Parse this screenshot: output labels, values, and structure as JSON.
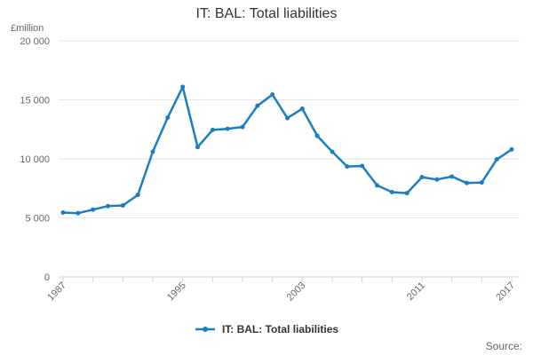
{
  "title": "IT: BAL: Total liabilities",
  "y_unit_label": "£million",
  "source_label": "Source:",
  "legend": {
    "label": "IT: BAL: Total liabilities"
  },
  "colors": {
    "line": "#1b7ec2",
    "grid": "#e6e6e6",
    "axis": "#ccd6eb",
    "tick_label": "#666666",
    "title_text": "#333333"
  },
  "chart_data": {
    "type": "line",
    "title": "IT: BAL: Total liabilities",
    "xlabel": "",
    "ylabel": "£million",
    "ylim": [
      0,
      20000
    ],
    "grid": "horizontal",
    "legend_position": "bottom",
    "x": [
      1987,
      1988,
      1989,
      1990,
      1991,
      1992,
      1993,
      1994,
      1995,
      1996,
      1997,
      1998,
      1999,
      2000,
      2001,
      2002,
      2003,
      2004,
      2005,
      2006,
      2007,
      2008,
      2009,
      2010,
      2011,
      2012,
      2013,
      2014,
      2015,
      2016,
      2017
    ],
    "series": [
      {
        "name": "IT: BAL: Total liabilities",
        "values": [
          5450,
          5400,
          5700,
          6000,
          6050,
          6950,
          10600,
          13500,
          16100,
          11000,
          12450,
          12550,
          12700,
          14500,
          15450,
          13450,
          14250,
          11950,
          10600,
          9350,
          9400,
          7750,
          7180,
          7100,
          8450,
          8250,
          8500,
          7950,
          8000,
          9950,
          10800
        ]
      }
    ],
    "y_ticks": [
      {
        "value": 0,
        "label": "0"
      },
      {
        "value": 5000,
        "label": "5 000"
      },
      {
        "value": 10000,
        "label": "10 000"
      },
      {
        "value": 15000,
        "label": "15 000"
      },
      {
        "value": 20000,
        "label": "20 000"
      }
    ],
    "x_tick_interval": 2,
    "x_labeled_ticks": [
      1987,
      1995,
      2003,
      2011,
      2017
    ]
  }
}
